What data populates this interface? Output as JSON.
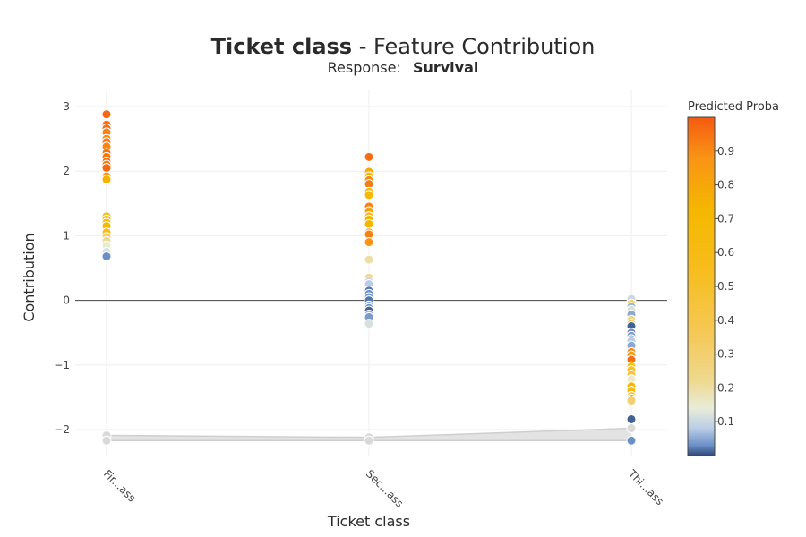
{
  "chart_data": {
    "type": "scatter",
    "title_bold": "Ticket class",
    "title_rest": " - Feature Contribution",
    "subtitle_prefix": "Response: ",
    "subtitle_bold": "Survival",
    "xlabel": "Ticket class",
    "ylabel": "Contribution",
    "categories": [
      "Fir...ass",
      "Sec...ass",
      "Thi...ass"
    ],
    "y_ticks": [
      3,
      2,
      1,
      0,
      -1,
      -2
    ],
    "y_tick_labels": [
      "3",
      "2",
      "1",
      "0",
      "−1",
      "−2"
    ],
    "ylim": [
      -2.5,
      3.2
    ],
    "grid": true,
    "colorbar": {
      "title": "Predicted Proba",
      "ticks": [
        0.1,
        0.2,
        0.3,
        0.4,
        0.5,
        0.6,
        0.7,
        0.8,
        0.9
      ],
      "range": [
        0,
        1
      ],
      "colorscale": [
        [
          0.0,
          "#2f4a7a"
        ],
        [
          0.03,
          "#6b8fc7"
        ],
        [
          0.08,
          "#b9cde6"
        ],
        [
          0.14,
          "#e8ecd8"
        ],
        [
          0.22,
          "#eed990"
        ],
        [
          0.35,
          "#f5c95a"
        ],
        [
          0.55,
          "#f7bd1c"
        ],
        [
          0.72,
          "#f5b800"
        ],
        [
          0.88,
          "#f99415"
        ],
        [
          1.0,
          "#f55a10"
        ]
      ]
    },
    "band": {
      "x": [
        "Fir...ass",
        "Sec...ass",
        "Thi...ass"
      ],
      "upper": [
        -2.09,
        -2.12,
        -1.98
      ],
      "lower": [
        -2.17,
        -2.17,
        -2.17
      ]
    },
    "series": [
      {
        "category": "Fir...ass",
        "points": [
          {
            "y": 2.88,
            "p": 0.97
          },
          {
            "y": 2.72,
            "p": 0.95
          },
          {
            "y": 2.66,
            "p": 0.96
          },
          {
            "y": 2.6,
            "p": 0.92
          },
          {
            "y": 2.5,
            "p": 0.9
          },
          {
            "y": 2.45,
            "p": 0.93
          },
          {
            "y": 2.38,
            "p": 0.91
          },
          {
            "y": 2.28,
            "p": 0.95
          },
          {
            "y": 2.22,
            "p": 0.94
          },
          {
            "y": 2.15,
            "p": 0.96
          },
          {
            "y": 2.1,
            "p": 0.93
          },
          {
            "y": 2.05,
            "p": 0.97
          },
          {
            "y": 1.92,
            "p": 0.85
          },
          {
            "y": 1.87,
            "p": 0.75
          },
          {
            "y": 1.3,
            "p": 0.55
          },
          {
            "y": 1.25,
            "p": 0.62
          },
          {
            "y": 1.2,
            "p": 0.66
          },
          {
            "y": 1.15,
            "p": 0.7
          },
          {
            "y": 1.05,
            "p": 0.6
          },
          {
            "y": 0.98,
            "p": 0.35
          },
          {
            "y": 0.92,
            "p": 0.22
          },
          {
            "y": 0.85,
            "p": 0.15
          },
          {
            "y": 0.75,
            "p": 0.12
          },
          {
            "y": 0.68,
            "p": 0.03
          },
          {
            "y": -2.09,
            "p": -1
          },
          {
            "y": -2.17,
            "p": -1
          }
        ]
      },
      {
        "category": "Sec...ass",
        "points": [
          {
            "y": 2.22,
            "p": 0.96
          },
          {
            "y": 1.99,
            "p": 0.78
          },
          {
            "y": 1.92,
            "p": 0.72
          },
          {
            "y": 1.86,
            "p": 0.9
          },
          {
            "y": 1.8,
            "p": 0.93
          },
          {
            "y": 1.68,
            "p": 0.65
          },
          {
            "y": 1.63,
            "p": 0.7
          },
          {
            "y": 1.45,
            "p": 0.92
          },
          {
            "y": 1.38,
            "p": 0.82
          },
          {
            "y": 1.3,
            "p": 0.55
          },
          {
            "y": 1.25,
            "p": 0.75
          },
          {
            "y": 1.18,
            "p": 0.72
          },
          {
            "y": 1.05,
            "p": 0.85
          },
          {
            "y": 1.02,
            "p": 0.92
          },
          {
            "y": 0.9,
            "p": 0.88
          },
          {
            "y": 0.63,
            "p": 0.2
          },
          {
            "y": 0.35,
            "p": 0.25
          },
          {
            "y": 0.3,
            "p": 0.1
          },
          {
            "y": 0.25,
            "p": 0.08
          },
          {
            "y": 0.15,
            "p": 0.02
          },
          {
            "y": 0.1,
            "p": 0.03
          },
          {
            "y": 0.05,
            "p": 0.04
          },
          {
            "y": 0.0,
            "p": 0.02
          },
          {
            "y": -0.08,
            "p": 0.05
          },
          {
            "y": -0.12,
            "p": 0.03
          },
          {
            "y": -0.16,
            "p": 0.01
          },
          {
            "y": -0.22,
            "p": 0.06
          },
          {
            "y": -0.26,
            "p": 0.04
          },
          {
            "y": -0.36,
            "p": 0.12
          },
          {
            "y": -2.12,
            "p": -1
          },
          {
            "y": -2.17,
            "p": -1
          }
        ]
      },
      {
        "category": "Thi...ass",
        "points": [
          {
            "y": 0.02,
            "p": 0.1
          },
          {
            "y": -0.05,
            "p": 0.3
          },
          {
            "y": -0.1,
            "p": 0.06
          },
          {
            "y": -0.15,
            "p": 0.12
          },
          {
            "y": -0.22,
            "p": 0.05
          },
          {
            "y": -0.3,
            "p": 0.25
          },
          {
            "y": -0.36,
            "p": 0.35
          },
          {
            "y": -0.4,
            "p": 0.01
          },
          {
            "y": -0.5,
            "p": 0.03
          },
          {
            "y": -0.55,
            "p": 0.04
          },
          {
            "y": -0.6,
            "p": 0.06
          },
          {
            "y": -0.63,
            "p": 0.08
          },
          {
            "y": -0.7,
            "p": 0.05
          },
          {
            "y": -0.8,
            "p": 0.9
          },
          {
            "y": -0.85,
            "p": 0.85
          },
          {
            "y": -0.92,
            "p": 0.96
          },
          {
            "y": -1.02,
            "p": 0.55
          },
          {
            "y": -1.08,
            "p": 0.5
          },
          {
            "y": -1.15,
            "p": 0.45
          },
          {
            "y": -1.22,
            "p": 0.15
          },
          {
            "y": -1.33,
            "p": 0.7
          },
          {
            "y": -1.4,
            "p": 0.6
          },
          {
            "y": -1.48,
            "p": 0.4
          },
          {
            "y": -1.52,
            "p": 0.06
          },
          {
            "y": -1.55,
            "p": 0.3
          },
          {
            "y": -1.84,
            "p": 0.01
          },
          {
            "y": -1.98,
            "p": -1
          },
          {
            "y": -2.17,
            "p": 0.03
          }
        ]
      }
    ]
  }
}
